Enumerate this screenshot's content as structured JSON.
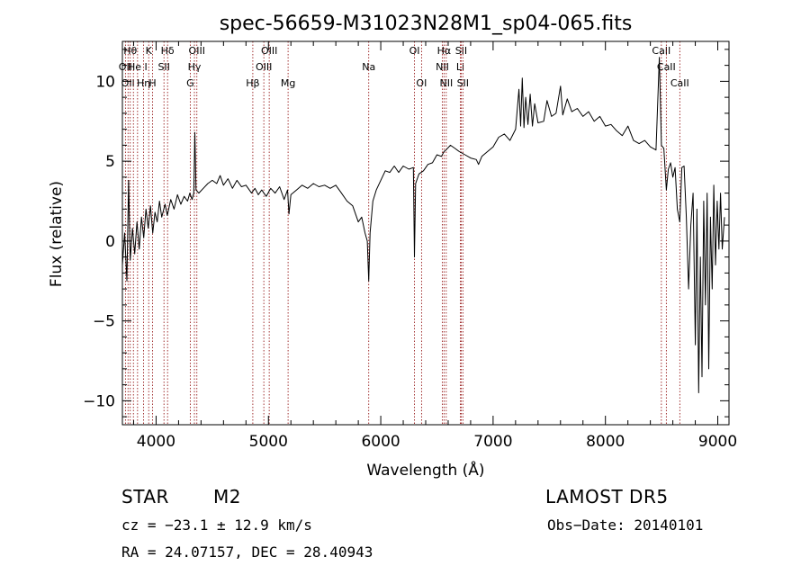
{
  "chart_data": {
    "type": "line",
    "title": "spec-56659-M31023N28M1_sp04-065.fits",
    "xlabel": "Wavelength (Å)",
    "ylabel": "Flux (relative)",
    "xlim": [
      3700,
      9100
    ],
    "ylim": [
      -11.5,
      12.5
    ],
    "x_ticks": [
      4000,
      5000,
      6000,
      7000,
      8000,
      9000
    ],
    "x_tick_labels": [
      "4000",
      "5000",
      "6000",
      "7000",
      "8000",
      "9000"
    ],
    "y_ticks": [
      -10,
      -5,
      0,
      5,
      10
    ],
    "y_tick_labels": [
      "−10",
      "−5",
      "0",
      "5",
      "10"
    ],
    "line_color": "#000000",
    "marker_color": "#8b0000",
    "series": [
      {
        "points": [
          [
            3700,
            -1.5
          ],
          [
            3720,
            0.5
          ],
          [
            3740,
            -2.5
          ],
          [
            3755,
            3.8
          ],
          [
            3770,
            -1.2
          ],
          [
            3790,
            0.8
          ],
          [
            3810,
            -0.8
          ],
          [
            3830,
            1.2
          ],
          [
            3850,
            -0.5
          ],
          [
            3870,
            1.5
          ],
          [
            3890,
            0.2
          ],
          [
            3910,
            2.0
          ],
          [
            3930,
            0.8
          ],
          [
            3950,
            2.2
          ],
          [
            3970,
            0.5
          ],
          [
            3990,
            1.8
          ],
          [
            4010,
            1.2
          ],
          [
            4030,
            2.5
          ],
          [
            4050,
            1.5
          ],
          [
            4080,
            2.3
          ],
          [
            4100,
            1.6
          ],
          [
            4130,
            2.6
          ],
          [
            4160,
            2.0
          ],
          [
            4190,
            2.9
          ],
          [
            4220,
            2.3
          ],
          [
            4250,
            2.8
          ],
          [
            4280,
            2.5
          ],
          [
            4300,
            3.0
          ],
          [
            4320,
            2.6
          ],
          [
            4335,
            3.0
          ],
          [
            4345,
            6.8
          ],
          [
            4355,
            3.2
          ],
          [
            4380,
            3.0
          ],
          [
            4420,
            3.3
          ],
          [
            4460,
            3.6
          ],
          [
            4500,
            3.8
          ],
          [
            4540,
            3.6
          ],
          [
            4570,
            4.1
          ],
          [
            4600,
            3.5
          ],
          [
            4640,
            3.9
          ],
          [
            4680,
            3.3
          ],
          [
            4720,
            3.8
          ],
          [
            4760,
            3.4
          ],
          [
            4800,
            3.5
          ],
          [
            4850,
            3.0
          ],
          [
            4880,
            3.3
          ],
          [
            4910,
            2.9
          ],
          [
            4940,
            3.2
          ],
          [
            4980,
            2.8
          ],
          [
            5020,
            3.3
          ],
          [
            5060,
            3.0
          ],
          [
            5100,
            3.4
          ],
          [
            5140,
            2.6
          ],
          [
            5170,
            3.2
          ],
          [
            5183,
            1.7
          ],
          [
            5200,
            2.9
          ],
          [
            5250,
            3.2
          ],
          [
            5300,
            3.5
          ],
          [
            5350,
            3.3
          ],
          [
            5400,
            3.6
          ],
          [
            5450,
            3.4
          ],
          [
            5500,
            3.5
          ],
          [
            5550,
            3.3
          ],
          [
            5600,
            3.5
          ],
          [
            5650,
            3.0
          ],
          [
            5700,
            2.5
          ],
          [
            5750,
            2.2
          ],
          [
            5800,
            1.2
          ],
          [
            5830,
            1.5
          ],
          [
            5860,
            0.5
          ],
          [
            5880,
            0.0
          ],
          [
            5893,
            -2.5
          ],
          [
            5905,
            0.5
          ],
          [
            5930,
            2.5
          ],
          [
            5960,
            3.2
          ],
          [
            6000,
            3.8
          ],
          [
            6040,
            4.4
          ],
          [
            6080,
            4.3
          ],
          [
            6120,
            4.7
          ],
          [
            6160,
            4.3
          ],
          [
            6200,
            4.7
          ],
          [
            6250,
            4.5
          ],
          [
            6290,
            4.6
          ],
          [
            6300,
            -1.0
          ],
          [
            6310,
            3.6
          ],
          [
            6340,
            4.2
          ],
          [
            6380,
            4.4
          ],
          [
            6420,
            4.8
          ],
          [
            6460,
            4.9
          ],
          [
            6500,
            5.4
          ],
          [
            6540,
            5.3
          ],
          [
            6563,
            5.6
          ],
          [
            6580,
            5.7
          ],
          [
            6620,
            6.0
          ],
          [
            6660,
            5.8
          ],
          [
            6700,
            5.6
          ],
          [
            6750,
            5.4
          ],
          [
            6800,
            5.2
          ],
          [
            6850,
            5.1
          ],
          [
            6870,
            4.8
          ],
          [
            6900,
            5.3
          ],
          [
            6950,
            5.6
          ],
          [
            7000,
            5.9
          ],
          [
            7050,
            6.5
          ],
          [
            7100,
            6.7
          ],
          [
            7150,
            6.3
          ],
          [
            7200,
            7.0
          ],
          [
            7230,
            9.5
          ],
          [
            7245,
            7.2
          ],
          [
            7260,
            10.2
          ],
          [
            7275,
            7.1
          ],
          [
            7290,
            9.0
          ],
          [
            7310,
            7.3
          ],
          [
            7330,
            9.2
          ],
          [
            7350,
            7.2
          ],
          [
            7370,
            8.6
          ],
          [
            7400,
            7.4
          ],
          [
            7450,
            7.5
          ],
          [
            7480,
            8.8
          ],
          [
            7520,
            7.8
          ],
          [
            7560,
            8.0
          ],
          [
            7600,
            9.7
          ],
          [
            7620,
            7.9
          ],
          [
            7660,
            8.9
          ],
          [
            7700,
            8.1
          ],
          [
            7750,
            8.3
          ],
          [
            7800,
            7.8
          ],
          [
            7850,
            8.1
          ],
          [
            7900,
            7.5
          ],
          [
            7950,
            7.8
          ],
          [
            8000,
            7.2
          ],
          [
            8050,
            7.3
          ],
          [
            8100,
            6.9
          ],
          [
            8150,
            6.6
          ],
          [
            8200,
            7.2
          ],
          [
            8250,
            6.3
          ],
          [
            8300,
            6.1
          ],
          [
            8350,
            6.3
          ],
          [
            8400,
            5.9
          ],
          [
            8450,
            5.7
          ],
          [
            8480,
            11.5
          ],
          [
            8490,
            8.5
          ],
          [
            8498,
            6.0
          ],
          [
            8520,
            5.8
          ],
          [
            8542,
            3.2
          ],
          [
            8560,
            4.5
          ],
          [
            8580,
            4.9
          ],
          [
            8600,
            4.0
          ],
          [
            8620,
            4.6
          ],
          [
            8640,
            2.0
          ],
          [
            8662,
            1.2
          ],
          [
            8680,
            4.6
          ],
          [
            8700,
            4.7
          ],
          [
            8720,
            1.5
          ],
          [
            8740,
            -3.0
          ],
          [
            8760,
            1.0
          ],
          [
            8780,
            3.0
          ],
          [
            8800,
            -6.5
          ],
          [
            8815,
            2.0
          ],
          [
            8830,
            -9.5
          ],
          [
            8845,
            -1.0
          ],
          [
            8860,
            -8.5
          ],
          [
            8875,
            2.5
          ],
          [
            8890,
            -4.0
          ],
          [
            8905,
            3.0
          ],
          [
            8920,
            -8.0
          ],
          [
            8935,
            1.5
          ],
          [
            8950,
            -3.0
          ],
          [
            8965,
            3.5
          ],
          [
            8980,
            -1.5
          ],
          [
            8995,
            2.5
          ],
          [
            9010,
            -0.5
          ],
          [
            9025,
            3.0
          ],
          [
            9040,
            -0.5
          ],
          [
            9060,
            1.5
          ]
        ]
      }
    ],
    "line_markers": [
      {
        "wavelength": 3727,
        "labels": [
          "OII"
        ],
        "row": [
          1
        ]
      },
      {
        "wavelength": 3750,
        "labels": [
          "OII"
        ],
        "row": [
          2
        ]
      },
      {
        "wavelength": 3770,
        "labels": [
          "Hθ"
        ],
        "row": [
          0
        ]
      },
      {
        "wavelength": 3798,
        "labels": [],
        "row": []
      },
      {
        "wavelength": 3835,
        "labels": [
          "He I"
        ],
        "row": [
          1
        ]
      },
      {
        "wavelength": 3889,
        "labels": [
          "Hη"
        ],
        "row": [
          2
        ]
      },
      {
        "wavelength": 3934,
        "labels": [
          "K"
        ],
        "row": [
          0
        ]
      },
      {
        "wavelength": 3969,
        "labels": [
          "H"
        ],
        "row": [
          2
        ]
      },
      {
        "wavelength": 4070,
        "labels": [
          "SII"
        ],
        "row": [
          1
        ]
      },
      {
        "wavelength": 4102,
        "labels": [
          "Hδ"
        ],
        "row": [
          0
        ]
      },
      {
        "wavelength": 4304,
        "labels": [
          "G"
        ],
        "row": [
          2
        ]
      },
      {
        "wavelength": 4341,
        "labels": [
          "Hγ"
        ],
        "row": [
          1
        ]
      },
      {
        "wavelength": 4363,
        "labels": [
          "OIII"
        ],
        "row": [
          0
        ]
      },
      {
        "wavelength": 4861,
        "labels": [
          "Hβ"
        ],
        "row": [
          2
        ]
      },
      {
        "wavelength": 4959,
        "labels": [
          "OIII"
        ],
        "row": [
          1
        ]
      },
      {
        "wavelength": 5007,
        "labels": [
          "OIII"
        ],
        "row": [
          0
        ]
      },
      {
        "wavelength": 5175,
        "labels": [
          "Mg"
        ],
        "row": [
          2
        ]
      },
      {
        "wavelength": 5893,
        "labels": [
          "Na"
        ],
        "row": [
          1
        ]
      },
      {
        "wavelength": 6300,
        "labels": [
          "OI"
        ],
        "row": [
          0
        ]
      },
      {
        "wavelength": 6363,
        "labels": [
          "OI"
        ],
        "row": [
          2
        ]
      },
      {
        "wavelength": 6548,
        "labels": [
          "NII"
        ],
        "row": [
          1
        ]
      },
      {
        "wavelength": 6563,
        "labels": [
          "Hα"
        ],
        "row": [
          0
        ]
      },
      {
        "wavelength": 6583,
        "labels": [
          "NII"
        ],
        "row": [
          2
        ]
      },
      {
        "wavelength": 6708,
        "labels": [
          "Li"
        ],
        "row": [
          1
        ]
      },
      {
        "wavelength": 6716,
        "labels": [
          "SII"
        ],
        "row": [
          0
        ]
      },
      {
        "wavelength": 6731,
        "labels": [
          "SII"
        ],
        "row": [
          2
        ]
      },
      {
        "wavelength": 8498,
        "labels": [
          "CaII"
        ],
        "row": [
          0
        ]
      },
      {
        "wavelength": 8542,
        "labels": [
          "CaII"
        ],
        "row": [
          1
        ]
      },
      {
        "wavelength": 8662,
        "labels": [
          "CaII"
        ],
        "row": [
          2
        ]
      }
    ]
  },
  "info": {
    "class_label": "STAR",
    "subclass_label": "M2",
    "survey": "LAMOST DR5",
    "cz": "cz = −23.1 ± 12.9 km/s",
    "obs_date": "Obs−Date: 20140101",
    "coords": "RA =  24.07157, DEC =  28.40943"
  }
}
